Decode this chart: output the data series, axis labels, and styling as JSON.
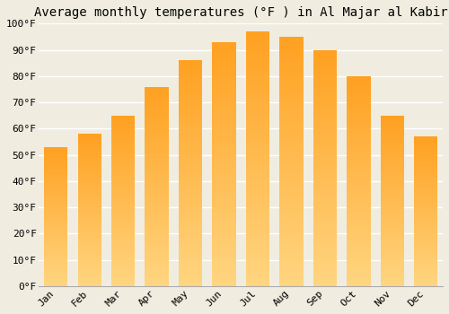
{
  "title": "Average monthly temperatures (°F ) in Al Majar al Kabir",
  "months": [
    "Jan",
    "Feb",
    "Mar",
    "Apr",
    "May",
    "Jun",
    "Jul",
    "Aug",
    "Sep",
    "Oct",
    "Nov",
    "Dec"
  ],
  "values": [
    53,
    58,
    65,
    76,
    86,
    93,
    97,
    95,
    90,
    80,
    65,
    57
  ],
  "bar_color_bottom": "#FFD580",
  "bar_color_top": "#FFA020",
  "ylim": [
    0,
    100
  ],
  "yticks": [
    0,
    10,
    20,
    30,
    40,
    50,
    60,
    70,
    80,
    90,
    100
  ],
  "ytick_labels": [
    "0°F",
    "10°F",
    "20°F",
    "30°F",
    "40°F",
    "50°F",
    "60°F",
    "70°F",
    "80°F",
    "90°F",
    "100°F"
  ],
  "background_color": "#f0ede0",
  "plot_bg_color": "#f0ede0",
  "grid_color": "#ffffff",
  "title_fontsize": 10,
  "tick_fontsize": 8,
  "bar_width": 0.7
}
